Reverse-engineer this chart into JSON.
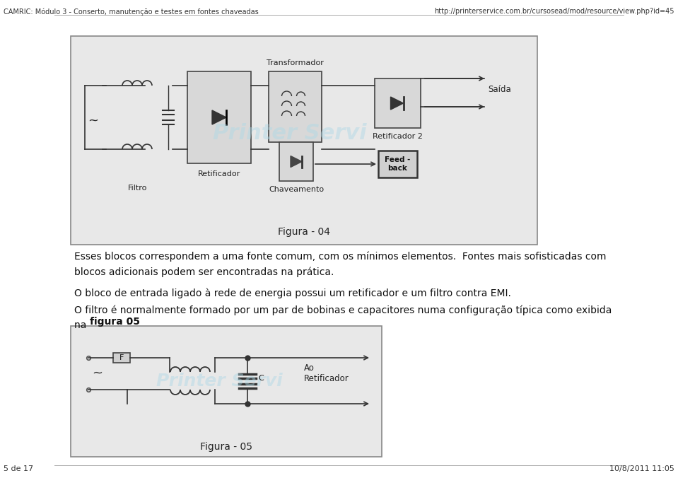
{
  "bg_color": "#f0f0f0",
  "page_bg": "#ffffff",
  "header_left": "CAMRIC: Módulo 3 - Conserto, manutenção e testes em fontes chaveadas",
  "header_right": "http://printerservice.com.br/cursosead/mod/resource/view.php?id=45",
  "footer_left": "5 de 17",
  "footer_right": "10/8/2011 11:05",
  "para1": "Esses blocos correspondem a uma fonte comum, com os mínimos elementos.  Fontes mais sofisticadas com\nblocos adicionais podem ser encontradas na prática.",
  "para2": "O bloco de entrada ligado à rede de energia possui um retificador e um filtro contra EMI.",
  "para3_normal": "O filtro é normalmente formado por um par de bobinas e capacitores numa configuração típica como exibida\nna ",
  "para3_bold": "figura 05",
  "para3_end": ".",
  "fig04_caption": "Figura - 04",
  "fig05_caption": "Figura - 05",
  "fig04_labels": {
    "transformador": "Transformador",
    "retificador": "Retificador",
    "filtro": "Filtro",
    "chaveamento": "Chaveamento",
    "retificador2": "Retificador 2",
    "saida": "Saída",
    "feedback": "Feed -\nback"
  },
  "fig05_labels": {
    "F": "F",
    "C": "C",
    "ao_retificador": "Ao\nRetificador"
  },
  "watermark": "Printer Servi",
  "watermark_color": "#add8e6"
}
